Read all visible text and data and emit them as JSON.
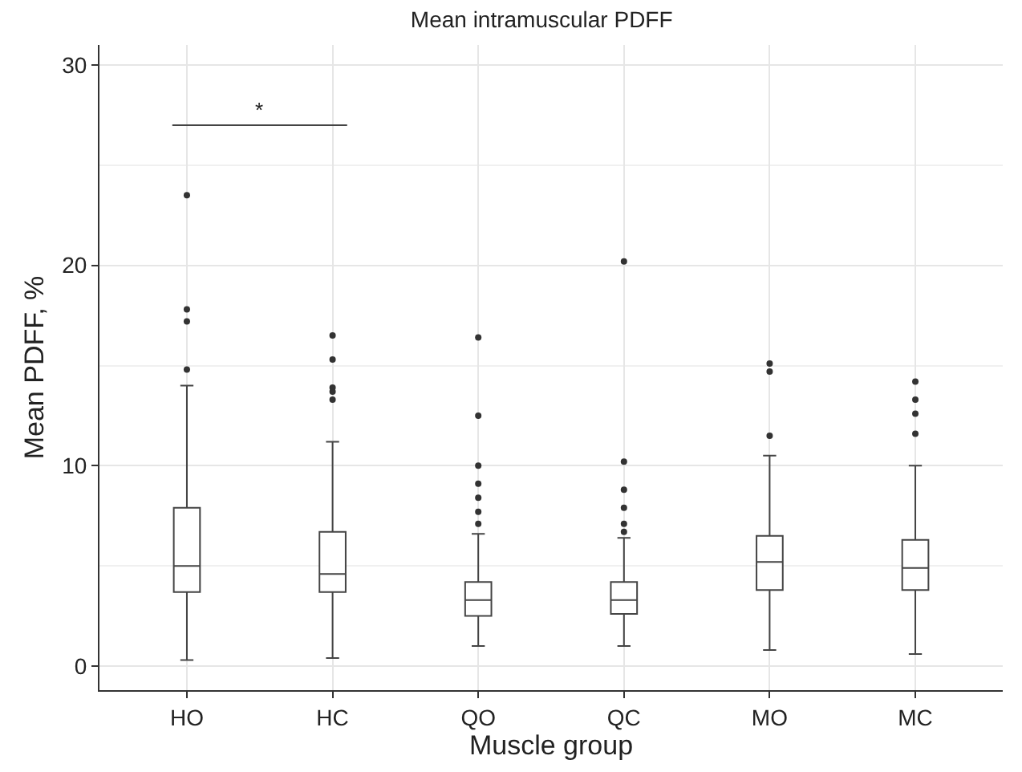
{
  "chart_data": {
    "type": "box",
    "title": "Mean intramuscular PDFF",
    "xlabel": "Muscle group",
    "ylabel": "Mean PDFF, %",
    "categories": [
      "HO",
      "HC",
      "QO",
      "QC",
      "MO",
      "MC"
    ],
    "boxes": [
      {
        "low": 0.3,
        "q1": 3.7,
        "median": 5.0,
        "q3": 7.9,
        "high": 14.0,
        "outliers": [
          14.8,
          17.2,
          17.8,
          23.5
        ]
      },
      {
        "low": 0.4,
        "q1": 3.7,
        "median": 4.6,
        "q3": 6.7,
        "high": 11.2,
        "outliers": [
          13.3,
          13.7,
          13.9,
          15.3,
          16.5
        ]
      },
      {
        "low": 1.0,
        "q1": 2.5,
        "median": 3.3,
        "q3": 4.2,
        "high": 6.6,
        "outliers": [
          7.1,
          7.7,
          8.4,
          9.1,
          10.0,
          12.5,
          16.4
        ]
      },
      {
        "low": 1.0,
        "q1": 2.6,
        "median": 3.3,
        "q3": 4.2,
        "high": 6.4,
        "outliers": [
          6.7,
          7.1,
          7.9,
          8.8,
          10.2,
          20.2
        ]
      },
      {
        "low": 0.8,
        "q1": 3.8,
        "median": 5.2,
        "q3": 6.5,
        "high": 10.5,
        "outliers": [
          11.5,
          14.7,
          15.1
        ]
      },
      {
        "low": 0.6,
        "q1": 3.8,
        "median": 4.9,
        "q3": 6.3,
        "high": 10.0,
        "outliers": [
          11.6,
          12.6,
          13.3,
          14.2
        ]
      }
    ],
    "color": "#ffffff",
    "ylim": [
      -1.2,
      31
    ],
    "yticks": [
      0,
      10,
      20,
      30
    ],
    "grid": true,
    "marker": "circle",
    "annotations": [
      "*"
    ]
  }
}
